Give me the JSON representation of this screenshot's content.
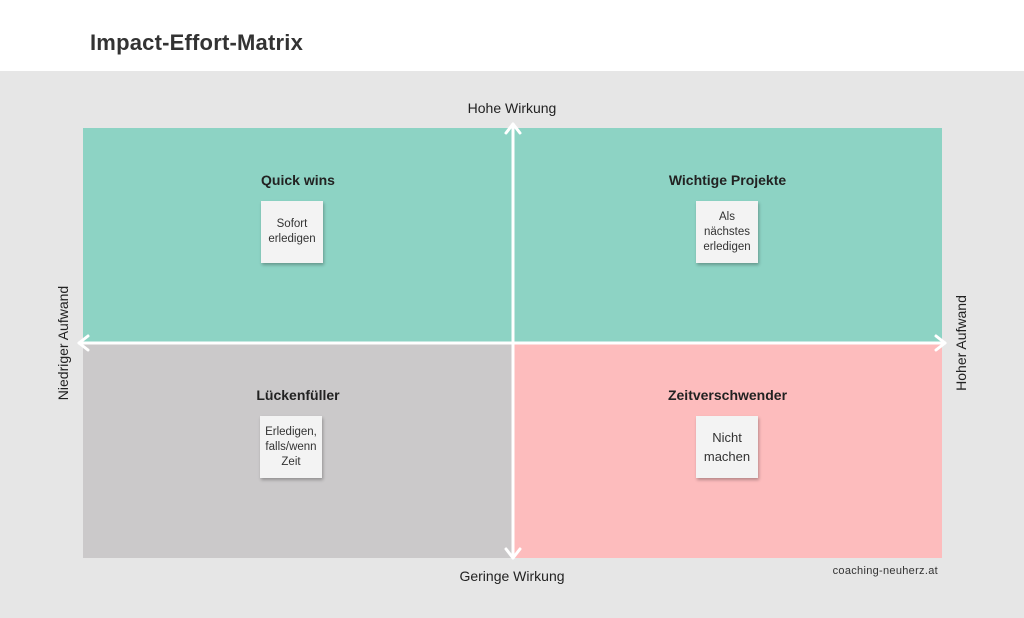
{
  "title": "Impact-Effort-Matrix",
  "axes": {
    "top": "Hohe Wirkung",
    "bottom": "Geringe Wirkung",
    "left": "Niedriger Aufwand",
    "right": "Hoher Aufwand"
  },
  "quadrants": {
    "top_left": {
      "title": "Quick wins",
      "note": [
        "Sofort",
        "erledigen"
      ],
      "color": "#8dd3c4"
    },
    "top_right": {
      "title": "Wichtige Projekte",
      "note": [
        "Als",
        "nächstes",
        "erledigen"
      ],
      "color": "#8dd3c4"
    },
    "bottom_left": {
      "title": "Lückenfüller",
      "note": [
        "Erledigen,",
        "falls/wenn",
        "Zeit"
      ],
      "color": "#cbc9ca"
    },
    "bottom_right": {
      "title": "Zeitverschwender",
      "note": [
        "Nicht",
        "machen"
      ],
      "color": "#fdbcbd"
    }
  },
  "credit": "coaching-neuherz.at"
}
